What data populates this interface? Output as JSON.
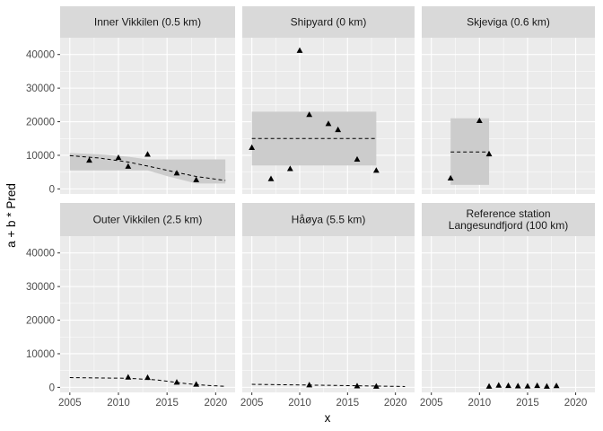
{
  "chart_data": {
    "type": "scatter",
    "xlabel": "x",
    "ylabel": "a + b * Pred",
    "xlim": [
      2004,
      2022
    ],
    "ylim": [
      -1500,
      45000
    ],
    "x_ticks": [
      2005,
      2010,
      2015,
      2020
    ],
    "y_ticks": [
      0,
      10000,
      20000,
      30000,
      40000
    ],
    "y_tick_labels": [
      "0",
      "10000",
      "20000",
      "30000",
      "40000"
    ],
    "grid": true,
    "legend": "none",
    "colors": {
      "panel_background": "#ebebeb",
      "strip_background": "#d9d9d9",
      "gridline": "#ffffff",
      "ribbon": "#cccccc",
      "points": "#000000",
      "fit_line": "#000000"
    },
    "panels": [
      {
        "strip": [
          "Inner Vikkilen (0.5 km)"
        ],
        "points": [
          {
            "x": 2007,
            "y": 8500
          },
          {
            "x": 2010,
            "y": 9300
          },
          {
            "x": 2011,
            "y": 6700
          },
          {
            "x": 2013,
            "y": 10300
          },
          {
            "x": 2016,
            "y": 4700
          },
          {
            "x": 2018,
            "y": 2700
          }
        ],
        "fit": [
          {
            "x": 2005,
            "y": 9900
          },
          {
            "x": 2008,
            "y": 9200
          },
          {
            "x": 2011,
            "y": 8000
          },
          {
            "x": 2014,
            "y": 6200
          },
          {
            "x": 2016,
            "y": 4900
          },
          {
            "x": 2018,
            "y": 3700
          },
          {
            "x": 2021,
            "y": 2500
          }
        ],
        "ribbon": [
          {
            "x": 2005,
            "lo": 5500,
            "hi": 10700
          },
          {
            "x": 2008,
            "lo": 5500,
            "hi": 10300
          },
          {
            "x": 2011,
            "lo": 5500,
            "hi": 9600
          },
          {
            "x": 2013,
            "lo": 5500,
            "hi": 8800
          },
          {
            "x": 2015,
            "lo": 3800,
            "hi": 8800
          },
          {
            "x": 2018,
            "lo": 1600,
            "hi": 8800
          },
          {
            "x": 2021,
            "lo": 1600,
            "hi": 8800
          }
        ]
      },
      {
        "strip": [
          "Shipyard (0 km)"
        ],
        "points": [
          {
            "x": 2005,
            "y": 12300
          },
          {
            "x": 2007,
            "y": 3000
          },
          {
            "x": 2009,
            "y": 6000
          },
          {
            "x": 2010,
            "y": 41200
          },
          {
            "x": 2011,
            "y": 22100
          },
          {
            "x": 2013,
            "y": 19400
          },
          {
            "x": 2014,
            "y": 17600
          },
          {
            "x": 2016,
            "y": 8800
          },
          {
            "x": 2018,
            "y": 5500
          }
        ],
        "fit": [
          {
            "x": 2005,
            "y": 15000
          },
          {
            "x": 2018,
            "y": 15000
          }
        ],
        "ribbon": [
          {
            "x": 2005,
            "lo": 7000,
            "hi": 23000
          },
          {
            "x": 2018,
            "lo": 7000,
            "hi": 23000
          }
        ]
      },
      {
        "strip": [
          "Skjeviga (0.6 km)"
        ],
        "points": [
          {
            "x": 2007,
            "y": 3200
          },
          {
            "x": 2010,
            "y": 20300
          },
          {
            "x": 2011,
            "y": 10400
          }
        ],
        "fit": [
          {
            "x": 2007,
            "y": 11000
          },
          {
            "x": 2011,
            "y": 11000
          }
        ],
        "ribbon": [
          {
            "x": 2007,
            "lo": 1200,
            "hi": 21000
          },
          {
            "x": 2011,
            "lo": 1200,
            "hi": 21000
          }
        ]
      },
      {
        "strip": [
          "Outer Vikkilen (2.5 km)"
        ],
        "points": [
          {
            "x": 2011,
            "y": 3000
          },
          {
            "x": 2013,
            "y": 2900
          },
          {
            "x": 2016,
            "y": 1500
          },
          {
            "x": 2018,
            "y": 900
          }
        ],
        "fit": [
          {
            "x": 2005,
            "y": 2900
          },
          {
            "x": 2008,
            "y": 2800
          },
          {
            "x": 2011,
            "y": 2700
          },
          {
            "x": 2014,
            "y": 2200
          },
          {
            "x": 2017,
            "y": 1100
          },
          {
            "x": 2019,
            "y": 600
          },
          {
            "x": 2021,
            "y": 300
          }
        ],
        "ribbon": []
      },
      {
        "strip": [
          "Håøya (5.5 km)"
        ],
        "points": [
          {
            "x": 2011,
            "y": 700
          },
          {
            "x": 2016,
            "y": 400
          },
          {
            "x": 2018,
            "y": 300
          }
        ],
        "fit": [
          {
            "x": 2005,
            "y": 900
          },
          {
            "x": 2013,
            "y": 600
          },
          {
            "x": 2021,
            "y": 250
          }
        ],
        "ribbon": []
      },
      {
        "strip": [
          "Reference station",
          "Langesundfjord (100 km)"
        ],
        "points": [
          {
            "x": 2011,
            "y": 300
          },
          {
            "x": 2012,
            "y": 600
          },
          {
            "x": 2013,
            "y": 500
          },
          {
            "x": 2014,
            "y": 400
          },
          {
            "x": 2015,
            "y": 350
          },
          {
            "x": 2016,
            "y": 500
          },
          {
            "x": 2017,
            "y": 300
          },
          {
            "x": 2018,
            "y": 450
          }
        ],
        "fit": [],
        "ribbon": []
      }
    ]
  }
}
